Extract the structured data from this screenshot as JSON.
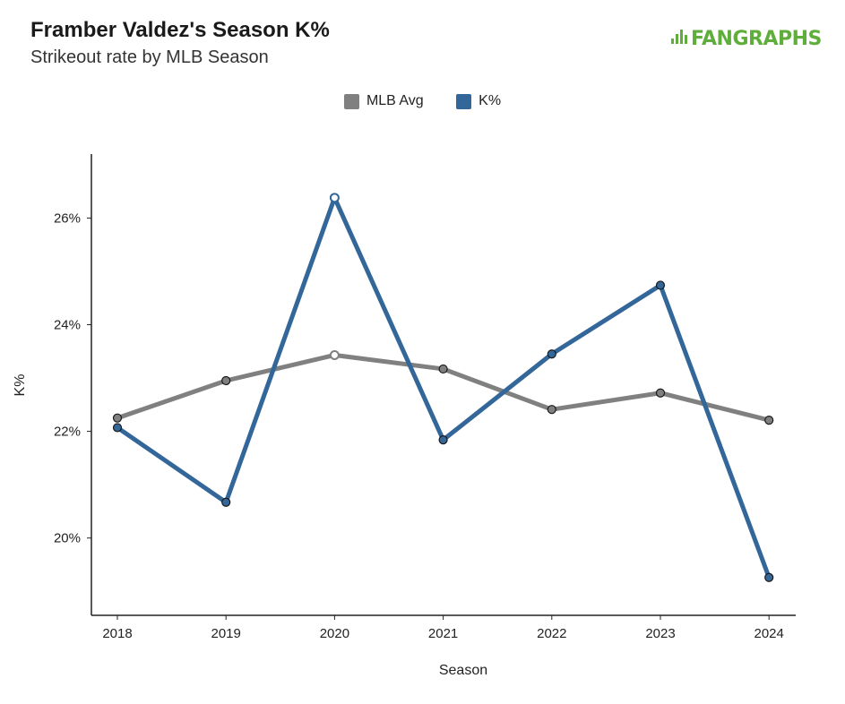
{
  "header": {
    "title": "Framber Valdez's Season K%",
    "subtitle": "Strikeout rate by MLB Season",
    "logo_text": "FANGRAPHS"
  },
  "colors": {
    "mlb_avg": "#808080",
    "k_pct": "#336699",
    "logo": "#5fae3c"
  },
  "chart_data": {
    "type": "line",
    "title": "Framber Valdez's Season K%",
    "subtitle": "Strikeout rate by MLB Season",
    "xlabel": "Season",
    "ylabel": "K%",
    "x": [
      2018,
      2019,
      2020,
      2021,
      2022,
      2023,
      2024
    ],
    "ylim": [
      18.55,
      27.2
    ],
    "yticks": [
      20,
      22,
      24,
      26
    ],
    "ytick_labels": [
      "20%",
      "22%",
      "24%",
      "26%"
    ],
    "legend_position": "top-center",
    "grid": false,
    "series": [
      {
        "name": "MLB Avg",
        "color": "#808080",
        "values": [
          22.25,
          22.95,
          23.43,
          23.17,
          22.41,
          22.72,
          22.21
        ],
        "open_markers": [
          2020
        ]
      },
      {
        "name": "K%",
        "color": "#336699",
        "values": [
          22.07,
          20.67,
          26.38,
          21.84,
          23.45,
          24.74,
          19.26
        ],
        "open_markers": [
          2020
        ]
      }
    ]
  }
}
